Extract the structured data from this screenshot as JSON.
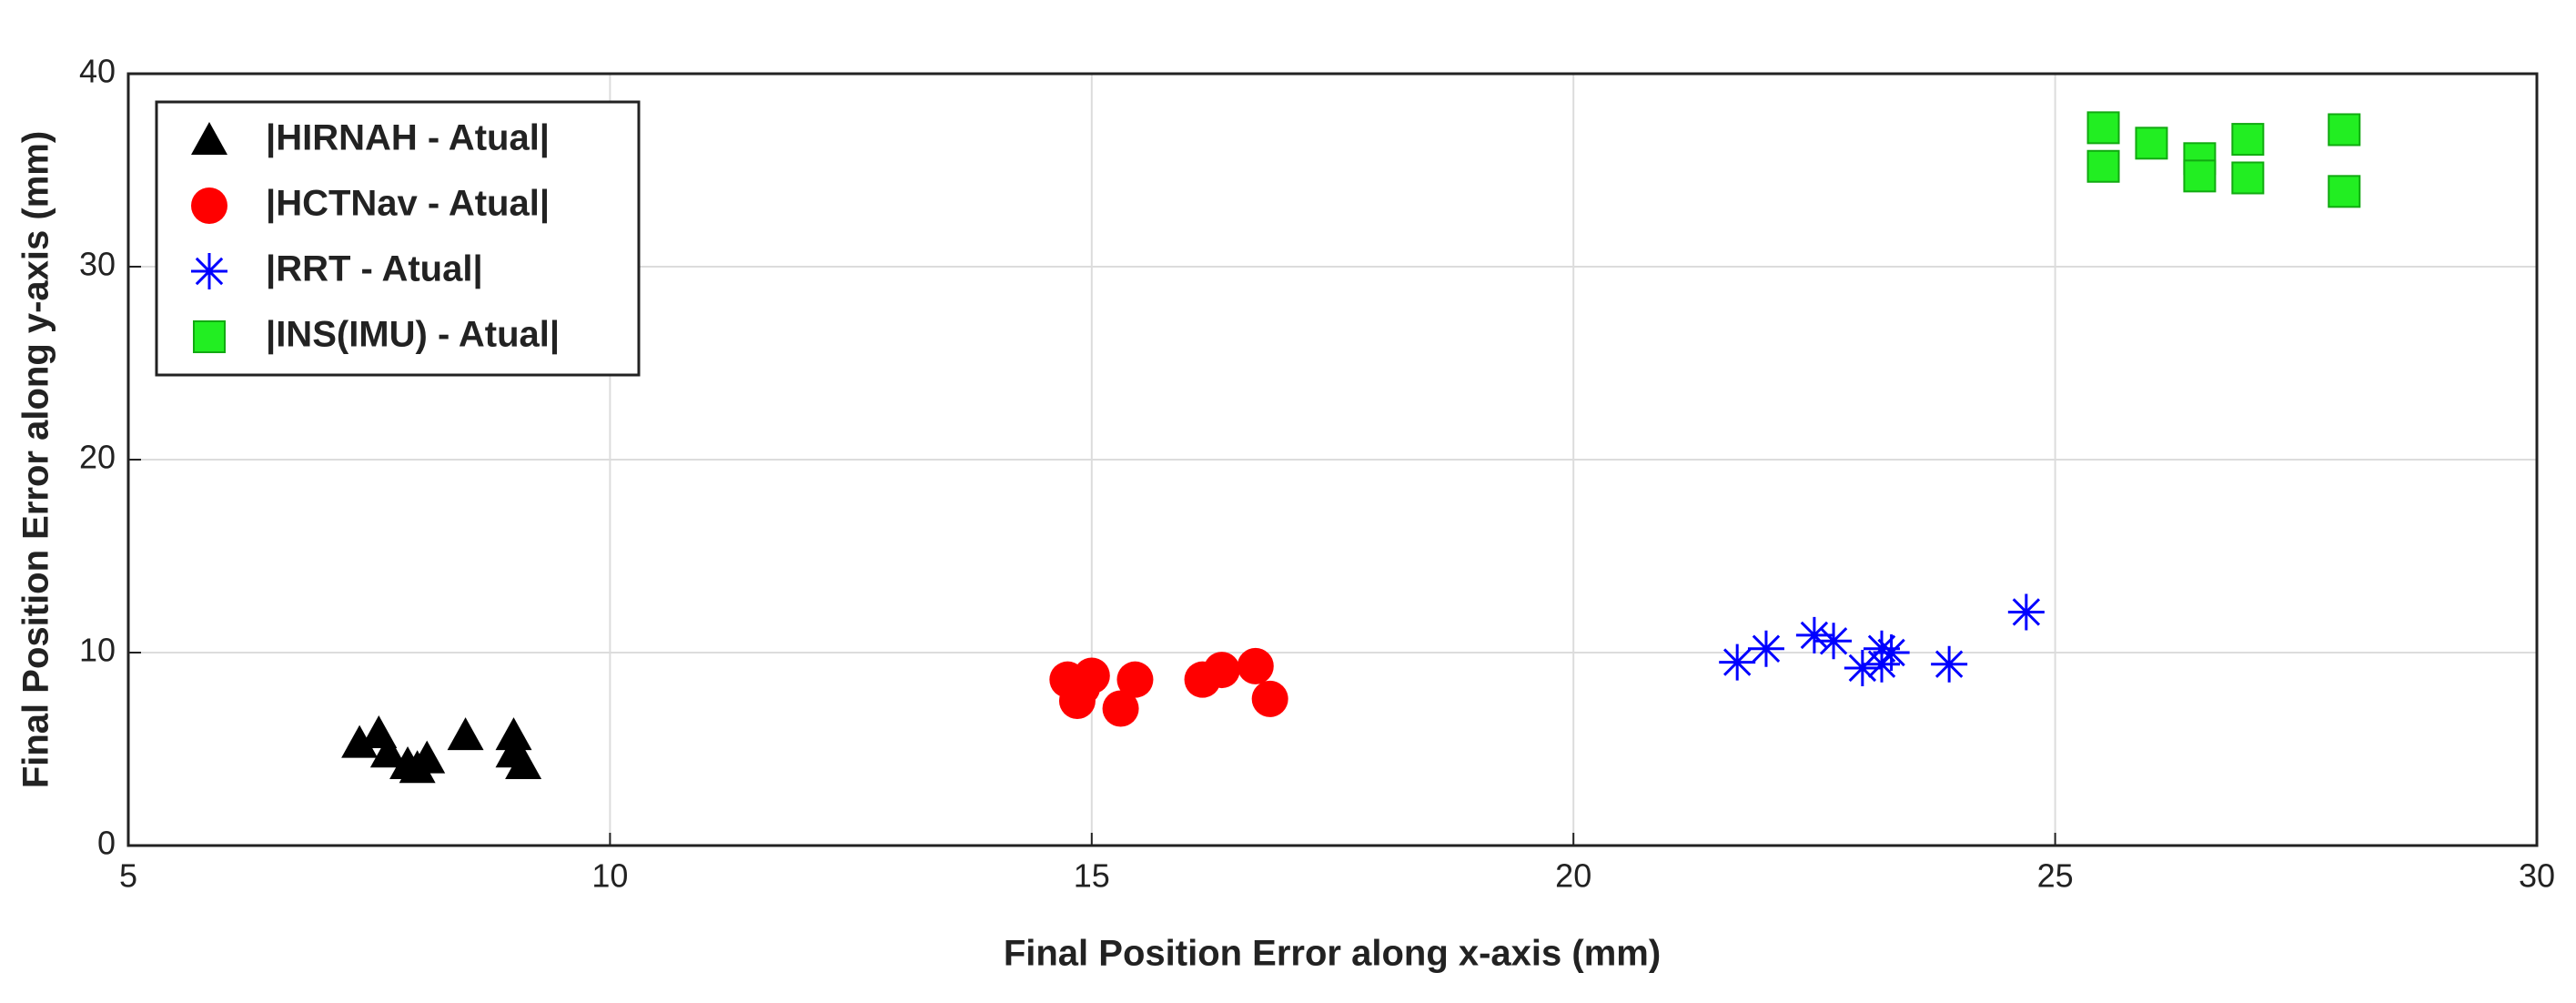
{
  "chart_data": {
    "type": "scatter",
    "x_label": "Final Position Error along x-axis (mm)",
    "y_label": "Final Position Error along y-axis (mm)",
    "xlim": [
      5,
      30
    ],
    "xticks": [
      5,
      10,
      15,
      20,
      25,
      30
    ],
    "ylim": [
      0,
      40
    ],
    "yticks": [
      0,
      10,
      20,
      30,
      40
    ],
    "grid": true,
    "legend": "upper-left",
    "series": [
      {
        "name": "|HIRNAH - Atual|",
        "color": "#000000",
        "marker": "triangle",
        "x": [
          7.4,
          7.6,
          7.7,
          7.9,
          8.0,
          8.1,
          8.5,
          9.0,
          9.0,
          9.1
        ],
        "values": [
          5.3,
          5.8,
          4.8,
          4.2,
          4.0,
          4.5,
          5.7,
          5.7,
          4.8,
          4.2
        ]
      },
      {
        "name": "|HCTNav - Atual|",
        "color": "#ff0000",
        "marker": "circle",
        "x": [
          14.75,
          14.85,
          14.9,
          15.0,
          15.3,
          15.45,
          16.15,
          16.35,
          16.7,
          16.85
        ],
        "values": [
          8.6,
          7.5,
          8.2,
          8.8,
          7.1,
          8.6,
          8.6,
          9.1,
          9.3,
          7.6
        ]
      },
      {
        "name": "|RRT - Atual|",
        "color": "#0000ff",
        "marker": "asterisk",
        "x": [
          21.7,
          22.0,
          22.5,
          22.7,
          23.0,
          23.2,
          23.2,
          23.3,
          23.9,
          24.7
        ],
        "values": [
          9.5,
          10.2,
          10.9,
          10.6,
          9.2,
          9.4,
          10.2,
          10.0,
          9.4,
          12.1
        ]
      },
      {
        "name": "|INS(IMU) - Atual|",
        "color": "#22ee22",
        "marker": "square",
        "x": [
          25.5,
          25.5,
          26.0,
          26.5,
          26.5,
          27.0,
          27.0,
          28.0,
          28.0
        ],
        "values": [
          37.2,
          35.2,
          36.4,
          35.6,
          34.7,
          36.6,
          34.6,
          37.1,
          33.9
        ]
      }
    ]
  }
}
